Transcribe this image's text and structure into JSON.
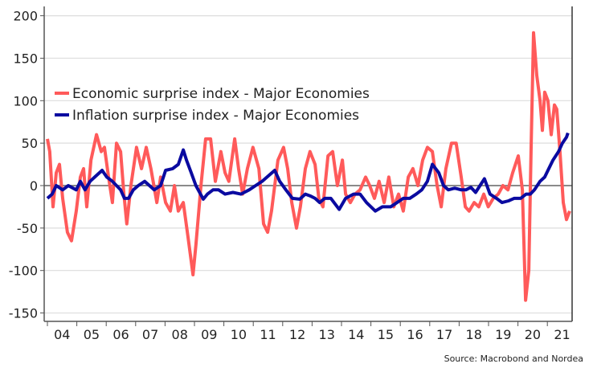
{
  "chart_data": {
    "type": "line",
    "title": "",
    "xlabel": "",
    "ylabel": "",
    "ylim": [
      -150,
      200
    ],
    "yticks": [
      200,
      150,
      100,
      50,
      0,
      -50,
      -100,
      -150
    ],
    "xlim": [
      2004.0,
      2021.8
    ],
    "xtick_labels": [
      "04",
      "05",
      "06",
      "07",
      "08",
      "09",
      "10",
      "11",
      "12",
      "13",
      "14",
      "15",
      "16",
      "17",
      "18",
      "19",
      "20",
      "21"
    ],
    "grid": true,
    "legend_position": "upper-left",
    "source": "Source: Macrobond and Nordea",
    "series": [
      {
        "name": "Economic surprise index - Major Economies",
        "color": "#ff5a5a",
        "x": [
          2004.0,
          2004.08,
          2004.19,
          2004.3,
          2004.41,
          2004.52,
          2004.68,
          2004.82,
          2004.98,
          2005.12,
          2005.23,
          2005.34,
          2005.48,
          2005.67,
          2005.83,
          2005.94,
          2006.08,
          2006.21,
          2006.35,
          2006.49,
          2006.6,
          2006.7,
          2006.84,
          2007.03,
          2007.2,
          2007.36,
          2007.52,
          2007.72,
          2007.85,
          2008.02,
          2008.18,
          2008.32,
          2008.45,
          2008.62,
          2008.78,
          2008.95,
          2009.05,
          2009.22,
          2009.38,
          2009.55,
          2009.71,
          2009.9,
          2010.04,
          2010.17,
          2010.37,
          2010.5,
          2010.64,
          2010.8,
          2010.99,
          2011.19,
          2011.35,
          2011.49,
          2011.62,
          2011.84,
          2012.03,
          2012.17,
          2012.31,
          2012.47,
          2012.6,
          2012.77,
          2012.93,
          2013.1,
          2013.23,
          2013.37,
          2013.54,
          2013.7,
          2013.86,
          2014.03,
          2014.14,
          2014.3,
          2014.46,
          2014.63,
          2014.82,
          2014.96,
          2015.12,
          2015.28,
          2015.45,
          2015.61,
          2015.78,
          2015.94,
          2016.1,
          2016.27,
          2016.43,
          2016.6,
          2016.76,
          2016.92,
          2017.09,
          2017.25,
          2017.39,
          2017.55,
          2017.74,
          2017.9,
          2018.07,
          2018.21,
          2018.34,
          2018.51,
          2018.67,
          2018.84,
          2018.99,
          2019.16,
          2019.33,
          2019.49,
          2019.66,
          2019.82,
          2020.01,
          2020.15,
          2020.26,
          2020.37,
          2020.45,
          2020.53,
          2020.64,
          2020.75,
          2020.83,
          2020.91,
          2021.02,
          2021.13,
          2021.24,
          2021.32,
          2021.43,
          2021.54,
          2021.65,
          2021.76
        ],
        "values": [
          55,
          40,
          -25,
          15,
          25,
          -15,
          -55,
          -65,
          -30,
          10,
          20,
          -25,
          30,
          60,
          40,
          45,
          10,
          -20,
          50,
          40,
          -10,
          -45,
          0,
          45,
          20,
          45,
          20,
          -20,
          10,
          -20,
          -30,
          0,
          -30,
          -20,
          -60,
          -105,
          -70,
          0,
          55,
          55,
          5,
          40,
          15,
          5,
          55,
          20,
          -10,
          20,
          45,
          20,
          -45,
          -55,
          -30,
          30,
          45,
          20,
          -20,
          -50,
          -25,
          20,
          40,
          25,
          -15,
          -25,
          35,
          40,
          0,
          30,
          -10,
          -20,
          -10,
          -5,
          10,
          0,
          -15,
          5,
          -20,
          10,
          -25,
          -10,
          -30,
          10,
          20,
          0,
          30,
          45,
          40,
          0,
          -25,
          20,
          50,
          50,
          10,
          -25,
          -30,
          -20,
          -25,
          -10,
          -25,
          -15,
          -10,
          0,
          -5,
          15,
          35,
          -5,
          -135,
          -100,
          50,
          180,
          130,
          100,
          65,
          110,
          100,
          60,
          95,
          90,
          40,
          -20,
          -40,
          -30
        ]
      },
      {
        "name": "Inflation surprise index - Major Economies",
        "color": "#0a0aa0",
        "x": [
          2004.0,
          2004.16,
          2004.3,
          2004.52,
          2004.71,
          2004.98,
          2005.12,
          2005.28,
          2005.45,
          2005.61,
          2005.86,
          2006.02,
          2006.21,
          2006.35,
          2006.49,
          2006.62,
          2006.76,
          2006.92,
          2007.09,
          2007.31,
          2007.47,
          2007.63,
          2007.85,
          2008.02,
          2008.26,
          2008.45,
          2008.62,
          2008.73,
          2008.89,
          2009.05,
          2009.3,
          2009.44,
          2009.63,
          2009.82,
          2010.04,
          2010.31,
          2010.58,
          2010.86,
          2011.08,
          2011.3,
          2011.73,
          2011.9,
          2012.11,
          2012.33,
          2012.58,
          2012.77,
          2012.93,
          2013.1,
          2013.26,
          2013.43,
          2013.64,
          2013.92,
          2014.14,
          2014.41,
          2014.63,
          2014.85,
          2015.15,
          2015.39,
          2015.67,
          2015.89,
          2016.1,
          2016.32,
          2016.54,
          2016.73,
          2016.92,
          2017.09,
          2017.31,
          2017.47,
          2017.63,
          2017.85,
          2018.07,
          2018.23,
          2018.4,
          2018.56,
          2018.86,
          2019.05,
          2019.27,
          2019.46,
          2019.68,
          2019.87,
          2020.09,
          2020.28,
          2020.42,
          2020.56,
          2020.75,
          2020.91,
          2021.05,
          2021.19,
          2021.38,
          2021.51,
          2021.65,
          2021.7
        ],
        "values": [
          -15,
          -10,
          0,
          -5,
          0,
          -5,
          5,
          -5,
          5,
          10,
          18,
          10,
          5,
          0,
          -5,
          -15,
          -15,
          -5,
          0,
          5,
          0,
          -5,
          0,
          18,
          20,
          25,
          42,
          30,
          15,
          0,
          -16,
          -10,
          -5,
          -5,
          -10,
          -8,
          -10,
          -5,
          0,
          5,
          18,
          5,
          -5,
          -15,
          -16,
          -10,
          -12,
          -15,
          -20,
          -15,
          -15,
          -28,
          -15,
          -10,
          -10,
          -20,
          -30,
          -25,
          -25,
          -20,
          -15,
          -15,
          -10,
          -5,
          5,
          25,
          15,
          0,
          -5,
          -3,
          -5,
          -5,
          -2,
          -8,
          8,
          -10,
          -15,
          -20,
          -18,
          -15,
          -15,
          -10,
          -10,
          -5,
          5,
          10,
          20,
          30,
          40,
          50,
          57,
          62
        ]
      }
    ]
  }
}
